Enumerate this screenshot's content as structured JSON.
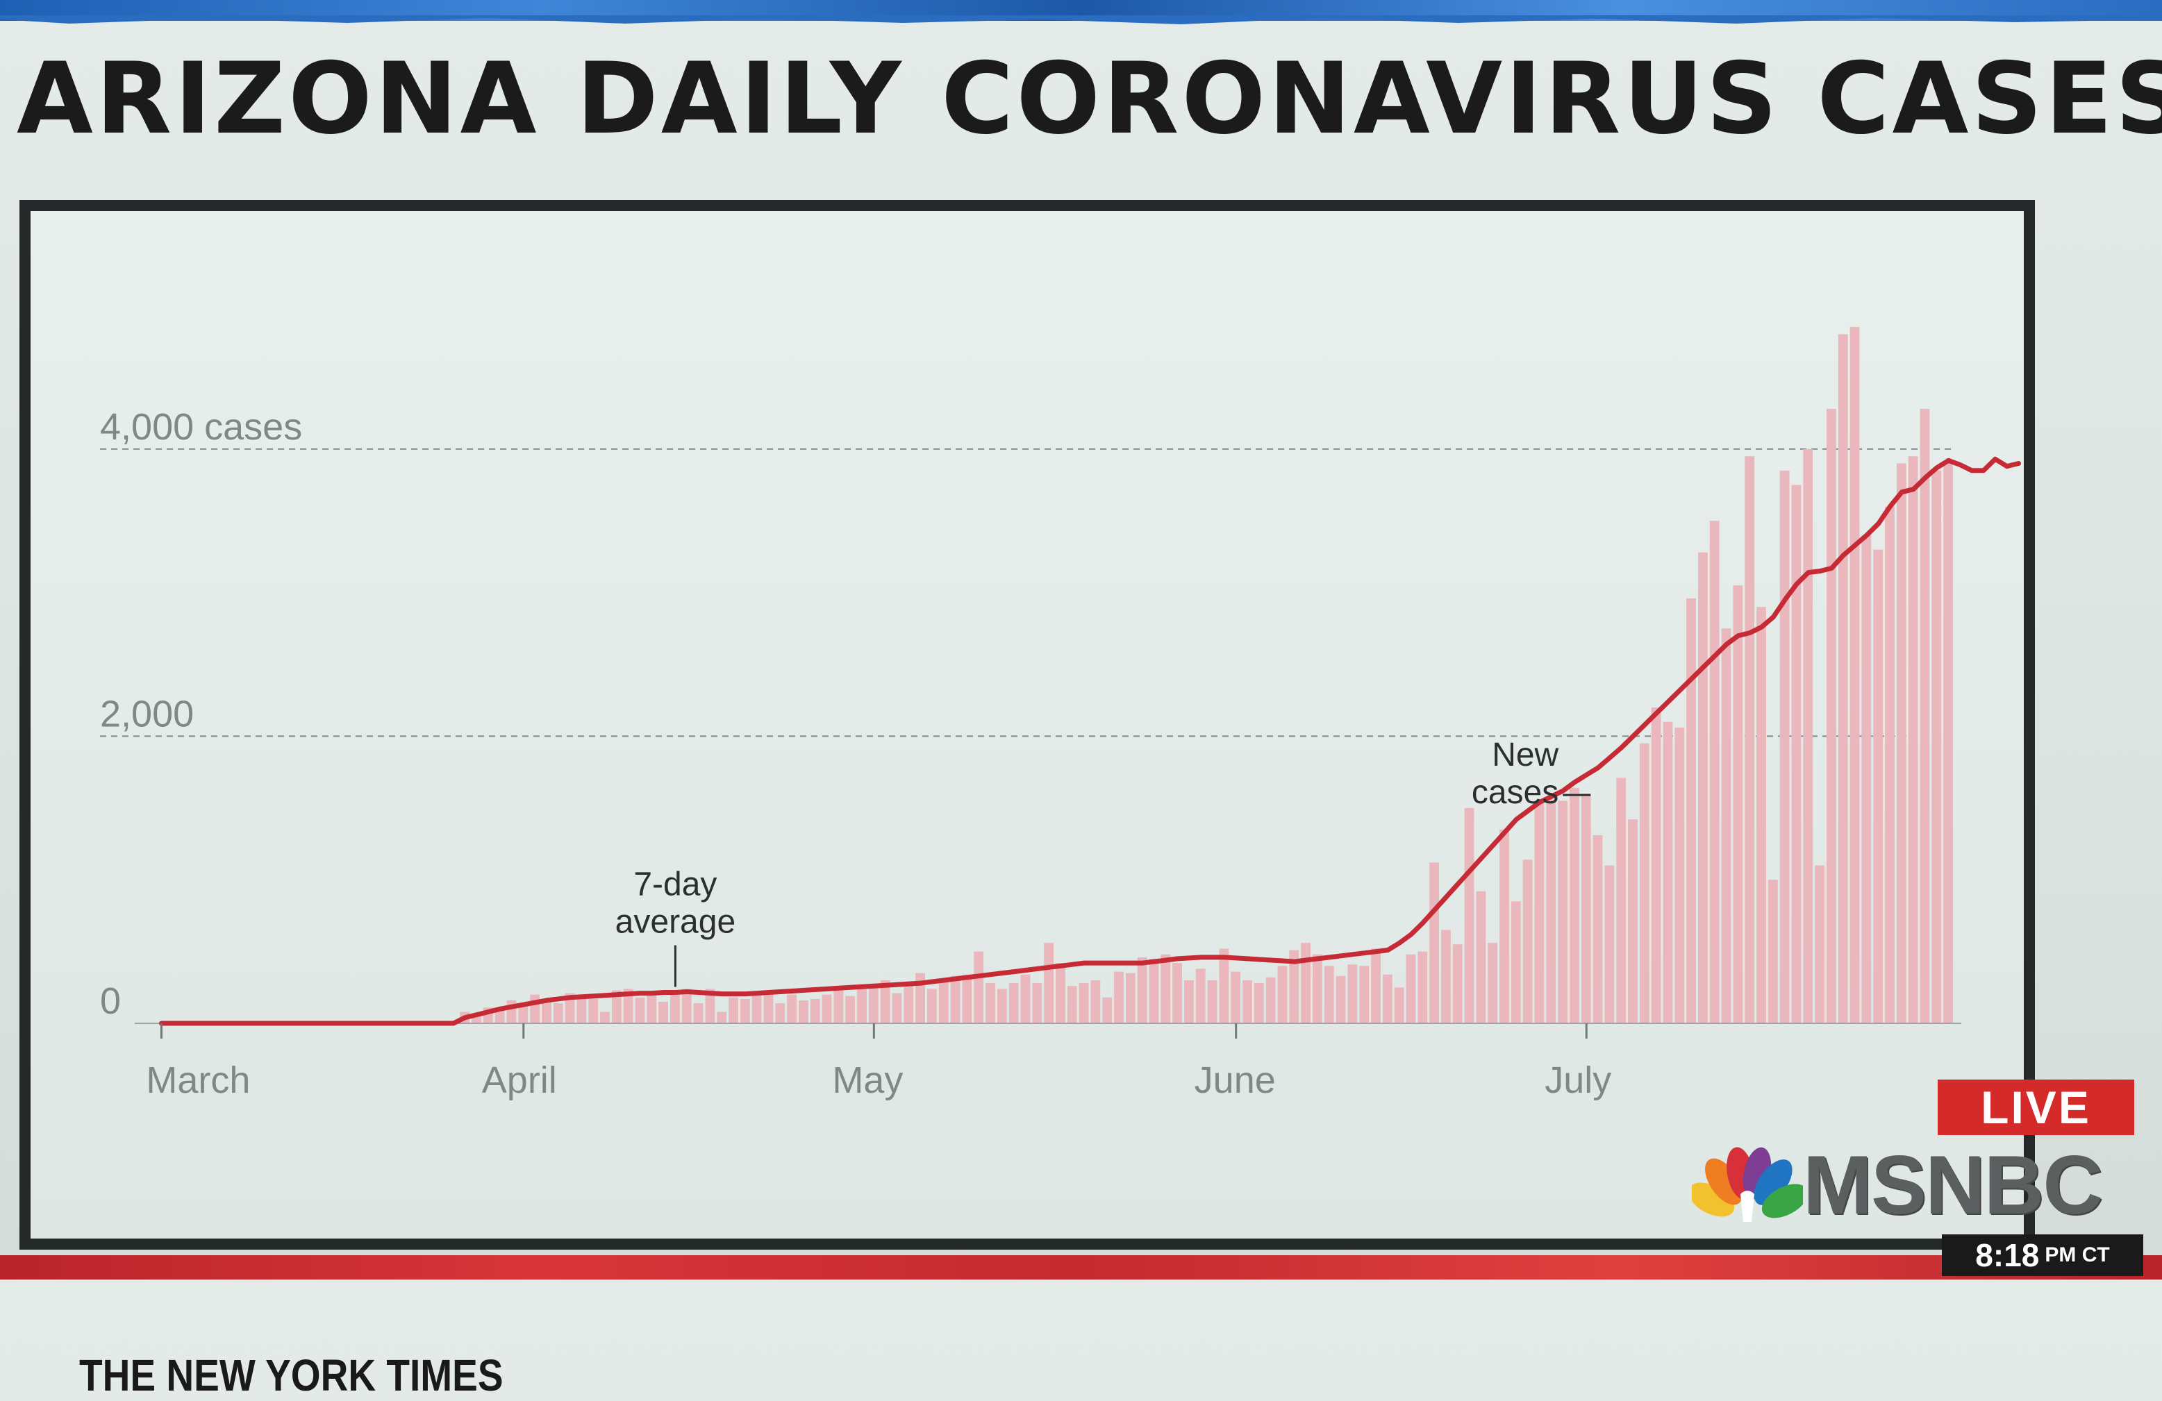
{
  "headline": "ARIZONA DAILY CORONAVIRUS CASES",
  "credit": "THE NEW YORK TIMES",
  "broadcast": {
    "live_label": "LIVE",
    "network": "MSNBC",
    "clock_time": "8:18",
    "clock_suffix": "PM CT",
    "colors": {
      "live": "#d42a2a",
      "band_top": "#2a6cc0",
      "band_bottom": "#c42a30"
    }
  },
  "chart_data": {
    "type": "bar",
    "title": "ARIZONA DAILY CORONAVIRUS CASES",
    "xlabel": "",
    "ylabel": "",
    "ylim": [
      0,
      5000
    ],
    "y_ticks": [
      {
        "value": 0,
        "label": "0"
      },
      {
        "value": 2000,
        "label": "2,000"
      },
      {
        "value": 4000,
        "label": "4,000 cases"
      }
    ],
    "grid": "horizontal dashed",
    "month_ticks": [
      {
        "day_index": 0,
        "label": "March"
      },
      {
        "day_index": 31,
        "label": "April"
      },
      {
        "day_index": 61,
        "label": "May"
      },
      {
        "day_index": 92,
        "label": "June"
      },
      {
        "day_index": 122,
        "label": "July"
      }
    ],
    "annotations": [
      {
        "text": [
          "New",
          "cases"
        ],
        "series": "New cases",
        "day_index": 122
      },
      {
        "text": [
          "7-day",
          "average"
        ],
        "series": "7-day average",
        "day_index": 44
      }
    ],
    "series": [
      {
        "name": "New cases",
        "kind": "bar",
        "color": "#eab7bc",
        "values": [
          0,
          0,
          0,
          0,
          0,
          0,
          0,
          0,
          0,
          0,
          0,
          0,
          0,
          0,
          0,
          0,
          0,
          0,
          0,
          0,
          0,
          0,
          0,
          0,
          0,
          0,
          80,
          60,
          110,
          90,
          160,
          140,
          200,
          150,
          140,
          210,
          190,
          170,
          80,
          230,
          240,
          180,
          200,
          150,
          200,
          240,
          140,
          240,
          80,
          180,
          170,
          200,
          230,
          140,
          200,
          160,
          170,
          200,
          250,
          190,
          260,
          260,
          300,
          210,
          270,
          350,
          240,
          310,
          330,
          340,
          500,
          280,
          240,
          280,
          340,
          280,
          560,
          420,
          260,
          280,
          300,
          180,
          360,
          350,
          460,
          450,
          480,
          420,
          300,
          380,
          300,
          520,
          360,
          300,
          280,
          320,
          400,
          510,
          560,
          480,
          400,
          330,
          410,
          400,
          520,
          340,
          250,
          480,
          500,
          1120,
          650,
          550,
          1500,
          920,
          560,
          1350,
          850,
          1140,
          1540,
          1560,
          1550,
          1640,
          1600,
          1310,
          1100,
          1710,
          1420,
          1950,
          2200,
          2100,
          2060,
          2960,
          3280,
          3500,
          2750,
          3050,
          3950,
          2900,
          1000,
          3850,
          3750,
          4000,
          1100,
          4280,
          4800,
          4850,
          3400,
          3300,
          3600,
          3900,
          3950,
          4280,
          3850,
          3900
        ],
        "bar_values": [
          0,
          0,
          0,
          0,
          0,
          0,
          0,
          0,
          0,
          0,
          0,
          0,
          0,
          0,
          0,
          0,
          0,
          0,
          0,
          0,
          0,
          0,
          0,
          0,
          0,
          0,
          80,
          60,
          110,
          90,
          160,
          140,
          200,
          150,
          140,
          210,
          190,
          170,
          80,
          230,
          240,
          180,
          200,
          150,
          200,
          240,
          140,
          240,
          80,
          180,
          170,
          200,
          230,
          140,
          200,
          160,
          170,
          200,
          250,
          190,
          260,
          260,
          300,
          210,
          270,
          350,
          240,
          310,
          330,
          340,
          500,
          280,
          240,
          280,
          340,
          280,
          560,
          420,
          260,
          280,
          300,
          180,
          360,
          350,
          460,
          450,
          480,
          420,
          300,
          380,
          300,
          520,
          360,
          300,
          280,
          320,
          400,
          510,
          560,
          480,
          400,
          330,
          410,
          400,
          520,
          340,
          250,
          480,
          500,
          1120,
          650,
          550,
          1500,
          920,
          560,
          1350,
          850,
          1140,
          1540,
          1560,
          1550,
          1640,
          1600,
          1310,
          1100,
          1710,
          1420,
          1950,
          2200,
          2100,
          2060,
          2960,
          3280,
          3500,
          2750,
          3050,
          3950,
          2900,
          1000,
          3850,
          3750,
          4000,
          1100,
          4280,
          4800,
          4850,
          3400,
          3300,
          3600,
          3900,
          3950,
          4280,
          3850,
          3900
        ]
      },
      {
        "name": "7-day average",
        "kind": "line",
        "color": "#c62b35",
        "values": [
          0,
          0,
          0,
          0,
          0,
          0,
          0,
          0,
          0,
          0,
          0,
          0,
          0,
          0,
          0,
          0,
          0,
          0,
          0,
          0,
          0,
          0,
          0,
          0,
          0,
          0,
          40,
          60,
          80,
          100,
          115,
          130,
          145,
          160,
          170,
          180,
          185,
          190,
          195,
          200,
          205,
          210,
          210,
          215,
          215,
          220,
          215,
          210,
          205,
          205,
          205,
          210,
          215,
          220,
          225,
          230,
          235,
          240,
          245,
          250,
          255,
          260,
          265,
          270,
          275,
          280,
          290,
          300,
          310,
          320,
          330,
          340,
          350,
          360,
          370,
          380,
          390,
          400,
          410,
          420,
          420,
          420,
          420,
          420,
          420,
          430,
          440,
          450,
          455,
          460,
          460,
          460,
          455,
          450,
          445,
          440,
          435,
          430,
          440,
          450,
          460,
          470,
          480,
          490,
          500,
          510,
          560,
          620,
          700,
          790,
          880,
          970,
          1060,
          1150,
          1240,
          1330,
          1420,
          1480,
          1540,
          1580,
          1620,
          1680,
          1730,
          1780,
          1850,
          1920,
          2000,
          2080,
          2160,
          2240,
          2320,
          2400,
          2480,
          2560,
          2640,
          2700,
          2720,
          2760,
          2830,
          2950,
          3060,
          3140,
          3150,
          3170,
          3260,
          3330,
          3400,
          3480,
          3600,
          3700,
          3720,
          3800,
          3870,
          3920,
          3890,
          3850,
          3850,
          3930,
          3880,
          3900
        ]
      }
    ]
  }
}
